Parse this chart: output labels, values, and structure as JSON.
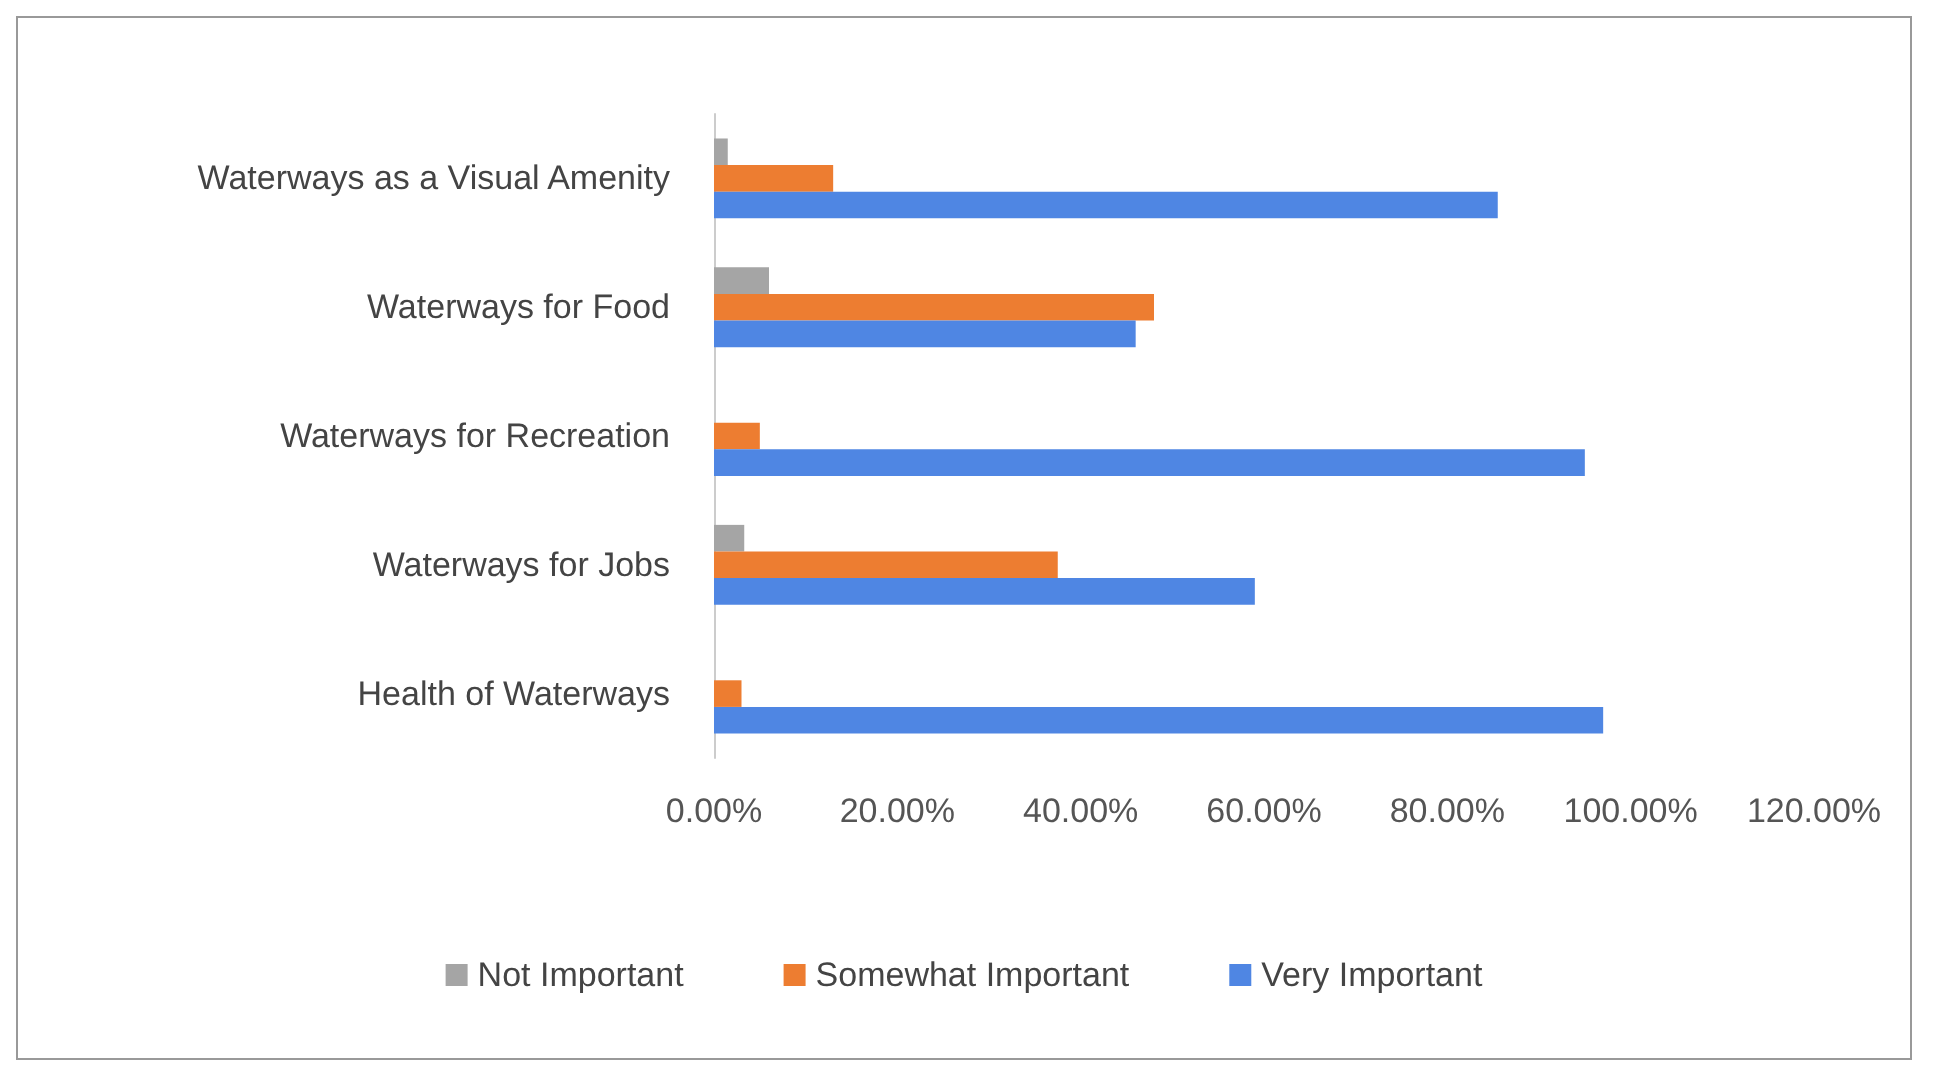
{
  "chart_data": {
    "type": "bar",
    "orientation": "horizontal",
    "categories": [
      "Waterways as a Visual Amenity",
      "Waterways for Food",
      "Waterways for Recreation",
      "Waterways for Jobs",
      "Health of Waterways"
    ],
    "series": [
      {
        "name": "Not Important",
        "color": "#a5a5a5",
        "values": [
          1.5,
          6,
          0,
          3.3,
          0
        ]
      },
      {
        "name": "Somewhat Important",
        "color": "#ed7d31",
        "values": [
          13,
          48,
          5,
          37.5,
          3
        ]
      },
      {
        "name": "Very Important",
        "color": "#4f86e3",
        "values": [
          85.5,
          46,
          95,
          59,
          97
        ]
      }
    ],
    "xlim": [
      0,
      120
    ],
    "xticks": [
      {
        "value": 0,
        "label": "0.00%"
      },
      {
        "value": 20,
        "label": "20.00%"
      },
      {
        "value": 40,
        "label": "40.00%"
      },
      {
        "value": 60,
        "label": "60.00%"
      },
      {
        "value": 80,
        "label": "80.00%"
      },
      {
        "value": 100,
        "label": "100.00%"
      },
      {
        "value": 120,
        "label": "120.00%"
      }
    ],
    "grid": false,
    "legend": "bottom"
  }
}
